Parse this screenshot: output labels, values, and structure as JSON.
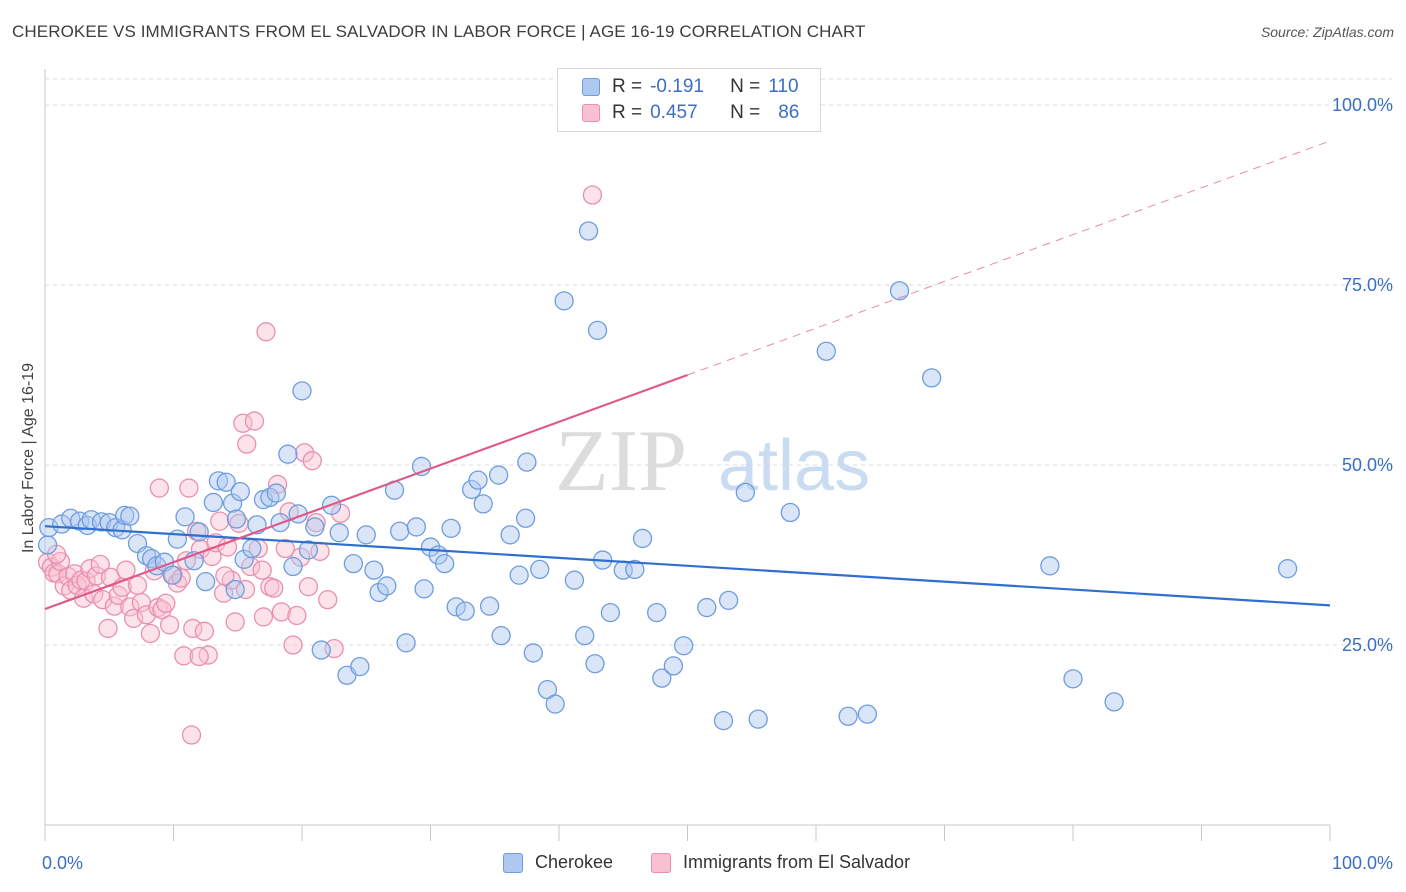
{
  "header": {
    "title": "CHEROKEE VS IMMIGRANTS FROM EL SALVADOR IN LABOR FORCE | AGE 16-19 CORRELATION CHART",
    "source": "Source: ZipAtlas.com"
  },
  "legend_top": {
    "rows": [
      {
        "r_label": "R =",
        "r_value": "-0.191",
        "n_label": "N =",
        "n_value": "110"
      },
      {
        "r_label": "R =",
        "r_value": "0.457",
        "n_label": "N =",
        "n_value": "86"
      }
    ]
  },
  "legend_bottom": {
    "items": [
      "Cherokee",
      "Immigrants from El Salvador"
    ]
  },
  "colors": {
    "blue_fill": "#aec8ef",
    "blue_stroke": "#6d9de0",
    "blue_line": "#2f6fcf",
    "pink_fill": "#f8c0d0",
    "pink_stroke": "#ea8fae",
    "pink_line": "#e0588a",
    "tick_label": "#3b6fc4",
    "grid": "#dddddd"
  },
  "chart_data": {
    "type": "scatter",
    "title": "CHEROKEE VS IMMIGRANTS FROM EL SALVADOR IN LABOR FORCE | AGE 16-19 CORRELATION CHART",
    "xlabel": "",
    "ylabel": "In Labor Force | Age 16-19",
    "xlim": [
      0,
      100
    ],
    "ylim": [
      0,
      105
    ],
    "x_tick_labels": [
      {
        "value": 0,
        "label": "0.0%"
      },
      {
        "value": 100,
        "label": "100.0%"
      }
    ],
    "y_tick_labels": [
      {
        "value": 25,
        "label": "25.0%"
      },
      {
        "value": 50,
        "label": "50.0%"
      },
      {
        "value": 75,
        "label": "75.0%"
      },
      {
        "value": 100,
        "label": "100.0%"
      }
    ],
    "grid": true,
    "watermark": "ZIPatlas",
    "series": [
      {
        "name": "Cherokee",
        "R": -0.191,
        "N": 110,
        "trend": {
          "x0": 0,
          "y0": 41.5,
          "x1": 100,
          "y1": 30.5
        },
        "points": [
          [
            0.2,
            38.9
          ],
          [
            0.3,
            41.3
          ],
          [
            1.3,
            41.8
          ],
          [
            2.0,
            42.6
          ],
          [
            2.7,
            42.2
          ],
          [
            3.3,
            41.6
          ],
          [
            3.6,
            42.4
          ],
          [
            4.4,
            42.1
          ],
          [
            5.0,
            42.0
          ],
          [
            5.5,
            41.3
          ],
          [
            6.0,
            41.0
          ],
          [
            6.2,
            43.0
          ],
          [
            6.6,
            42.9
          ],
          [
            7.2,
            39.1
          ],
          [
            7.9,
            37.4
          ],
          [
            8.3,
            37.0
          ],
          [
            8.7,
            36.0
          ],
          [
            9.3,
            36.5
          ],
          [
            9.9,
            34.7
          ],
          [
            10.3,
            39.7
          ],
          [
            10.9,
            42.8
          ],
          [
            11.6,
            36.7
          ],
          [
            12.0,
            40.7
          ],
          [
            12.5,
            33.8
          ],
          [
            13.1,
            44.8
          ],
          [
            13.5,
            47.8
          ],
          [
            14.1,
            47.6
          ],
          [
            14.6,
            44.7
          ],
          [
            14.9,
            42.5
          ],
          [
            14.8,
            32.7
          ],
          [
            15.2,
            46.3
          ],
          [
            15.5,
            36.9
          ],
          [
            16.1,
            38.4
          ],
          [
            16.5,
            41.7
          ],
          [
            17.0,
            45.2
          ],
          [
            17.5,
            45.5
          ],
          [
            18.0,
            46.1
          ],
          [
            18.3,
            42.0
          ],
          [
            18.9,
            51.5
          ],
          [
            19.3,
            35.9
          ],
          [
            19.7,
            43.2
          ],
          [
            20.0,
            60.3
          ],
          [
            20.5,
            38.2
          ],
          [
            21.0,
            41.4
          ],
          [
            21.5,
            24.3
          ],
          [
            22.3,
            44.4
          ],
          [
            22.9,
            40.6
          ],
          [
            23.5,
            20.8
          ],
          [
            24.0,
            36.3
          ],
          [
            24.5,
            22.0
          ],
          [
            25.0,
            40.3
          ],
          [
            25.6,
            35.4
          ],
          [
            26.0,
            32.3
          ],
          [
            26.6,
            33.2
          ],
          [
            27.2,
            46.5
          ],
          [
            27.6,
            40.8
          ],
          [
            28.1,
            25.3
          ],
          [
            28.9,
            41.4
          ],
          [
            29.3,
            49.8
          ],
          [
            29.5,
            32.8
          ],
          [
            30.0,
            38.6
          ],
          [
            30.6,
            37.5
          ],
          [
            31.1,
            36.3
          ],
          [
            31.6,
            41.2
          ],
          [
            32.0,
            30.3
          ],
          [
            32.7,
            29.7
          ],
          [
            33.2,
            46.6
          ],
          [
            33.7,
            47.9
          ],
          [
            34.1,
            44.6
          ],
          [
            34.6,
            30.4
          ],
          [
            35.3,
            48.6
          ],
          [
            35.5,
            26.3
          ],
          [
            36.2,
            40.3
          ],
          [
            36.9,
            34.7
          ],
          [
            37.4,
            42.6
          ],
          [
            38.0,
            23.9
          ],
          [
            38.5,
            35.5
          ],
          [
            39.1,
            18.8
          ],
          [
            39.7,
            16.8
          ],
          [
            40.4,
            72.8
          ],
          [
            41.2,
            34.0
          ],
          [
            42.0,
            26.3
          ],
          [
            42.8,
            22.4
          ],
          [
            43.4,
            36.8
          ],
          [
            44.0,
            29.5
          ],
          [
            45.0,
            35.4
          ],
          [
            45.9,
            35.5
          ],
          [
            46.5,
            39.8
          ],
          [
            47.6,
            29.5
          ],
          [
            48.0,
            20.4
          ],
          [
            48.9,
            22.1
          ],
          [
            49.7,
            24.9
          ],
          [
            51.5,
            30.2
          ],
          [
            52.8,
            14.5
          ],
          [
            53.2,
            31.2
          ],
          [
            54.5,
            46.2
          ],
          [
            55.5,
            14.7
          ],
          [
            58.0,
            43.4
          ],
          [
            60.8,
            65.8
          ],
          [
            62.5,
            15.1
          ],
          [
            64.0,
            15.4
          ],
          [
            66.5,
            74.2
          ],
          [
            69.0,
            62.1
          ],
          [
            78.2,
            36.0
          ],
          [
            80.0,
            20.3
          ],
          [
            83.2,
            17.1
          ],
          [
            96.7,
            35.6
          ],
          [
            37.5,
            50.4
          ],
          [
            42.3,
            82.5
          ],
          [
            43.0,
            68.7
          ]
        ]
      },
      {
        "name": "Immigrants from El Salvador",
        "R": 0.457,
        "N": 86,
        "trend": {
          "x0": 0,
          "y0": 30.0,
          "x1": 50,
          "y1": 62.5
        },
        "trend_dashed_to": {
          "x": 100,
          "y": 95.0
        },
        "points": [
          [
            0.2,
            36.5
          ],
          [
            0.5,
            35.8
          ],
          [
            0.7,
            35.0
          ],
          [
            1.0,
            34.9
          ],
          [
            1.2,
            36.6
          ],
          [
            1.5,
            33.2
          ],
          [
            1.8,
            34.5
          ],
          [
            2.0,
            32.6
          ],
          [
            2.3,
            34.9
          ],
          [
            2.5,
            33.3
          ],
          [
            2.8,
            34.0
          ],
          [
            3.0,
            31.5
          ],
          [
            3.2,
            33.9
          ],
          [
            3.5,
            35.6
          ],
          [
            3.8,
            32.1
          ],
          [
            4.0,
            34.6
          ],
          [
            4.3,
            36.2
          ],
          [
            4.5,
            31.3
          ],
          [
            4.9,
            27.3
          ],
          [
            5.1,
            34.4
          ],
          [
            5.4,
            30.4
          ],
          [
            5.7,
            31.9
          ],
          [
            6.0,
            33.0
          ],
          [
            6.3,
            35.4
          ],
          [
            6.6,
            30.3
          ],
          [
            6.9,
            28.7
          ],
          [
            7.2,
            33.3
          ],
          [
            7.5,
            30.9
          ],
          [
            7.9,
            29.2
          ],
          [
            8.2,
            26.6
          ],
          [
            8.5,
            35.3
          ],
          [
            8.8,
            30.2
          ],
          [
            9.1,
            29.9
          ],
          [
            9.4,
            30.8
          ],
          [
            9.7,
            27.8
          ],
          [
            10.0,
            34.7
          ],
          [
            10.3,
            33.6
          ],
          [
            10.6,
            34.3
          ],
          [
            11.0,
            36.7
          ],
          [
            11.2,
            46.8
          ],
          [
            11.5,
            27.3
          ],
          [
            11.8,
            40.8
          ],
          [
            12.1,
            38.3
          ],
          [
            12.4,
            26.9
          ],
          [
            12.7,
            23.6
          ],
          [
            13.0,
            37.3
          ],
          [
            13.3,
            39.2
          ],
          [
            13.6,
            42.2
          ],
          [
            13.9,
            32.2
          ],
          [
            14.2,
            38.6
          ],
          [
            14.5,
            34.0
          ],
          [
            14.8,
            28.2
          ],
          [
            15.1,
            41.9
          ],
          [
            15.4,
            55.8
          ],
          [
            15.7,
            52.9
          ],
          [
            16.0,
            35.9
          ],
          [
            16.3,
            56.1
          ],
          [
            16.6,
            38.4
          ],
          [
            16.9,
            35.4
          ],
          [
            17.2,
            68.5
          ],
          [
            17.5,
            33.1
          ],
          [
            17.8,
            32.9
          ],
          [
            18.1,
            47.3
          ],
          [
            18.4,
            29.6
          ],
          [
            18.7,
            38.4
          ],
          [
            19.0,
            43.5
          ],
          [
            19.3,
            25.0
          ],
          [
            19.6,
            29.1
          ],
          [
            19.9,
            37.2
          ],
          [
            20.2,
            51.7
          ],
          [
            20.5,
            33.1
          ],
          [
            20.8,
            50.6
          ],
          [
            21.1,
            42.0
          ],
          [
            21.4,
            38.0
          ],
          [
            22.0,
            31.3
          ],
          [
            22.5,
            24.5
          ],
          [
            8.9,
            46.8
          ],
          [
            10.8,
            23.5
          ],
          [
            11.4,
            12.5
          ],
          [
            12.0,
            23.4
          ],
          [
            17.0,
            28.9
          ],
          [
            23.0,
            43.3
          ],
          [
            15.6,
            32.7
          ],
          [
            14.0,
            34.6
          ],
          [
            42.6,
            87.5
          ],
          [
            0.9,
            37.6
          ]
        ]
      }
    ]
  }
}
